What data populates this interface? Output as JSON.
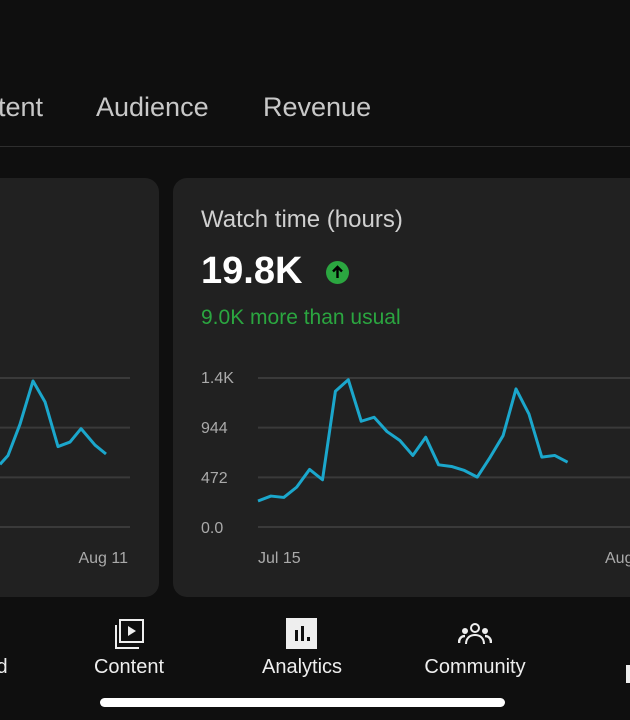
{
  "tabs": [
    {
      "label": "Content",
      "visible_text": "tent"
    },
    {
      "label": "Audience"
    },
    {
      "label": "Revenue"
    }
  ],
  "left_card": {
    "x_end_label": "Aug 11",
    "relative_values": [
      0.42,
      0.48,
      0.69,
      0.98,
      0.84,
      0.54,
      0.57,
      0.66,
      0.55,
      0.49
    ]
  },
  "watch_time_card": {
    "title": "Watch time (hours)",
    "value": "19.8K",
    "trend_icon": "arrow-up-circle-icon",
    "delta_text": "9.0K more than usual",
    "accent_color": "#2ba640",
    "line_color": "#1ba7cc"
  },
  "chart_data": {
    "type": "line",
    "title": "Watch time (hours)",
    "y_ticks": [
      "0.0",
      "472",
      "944",
      "1.4K"
    ],
    "ylim": [
      0,
      1416
    ],
    "x_tick_labels": [
      "Jul 15",
      "Aug"
    ],
    "grid": true,
    "x": [
      "Jul 15",
      "Jul 16",
      "Jul 17",
      "Jul 18",
      "Jul 19",
      "Jul 20",
      "Jul 21",
      "Jul 22",
      "Jul 23",
      "Jul 24",
      "Jul 25",
      "Jul 26",
      "Jul 27",
      "Jul 28",
      "Jul 29",
      "Jul 30",
      "Jul 31",
      "Aug 1",
      "Aug 2",
      "Aug 3",
      "Aug 4",
      "Aug 5",
      "Aug 6",
      "Aug 7",
      "Aug 8"
    ],
    "values": [
      247,
      294,
      281,
      379,
      547,
      449,
      1290,
      1400,
      1005,
      1043,
      907,
      822,
      680,
      853,
      591,
      575,
      537,
      474,
      664,
      869,
      1312,
      1075,
      664,
      680,
      616
    ]
  },
  "bottom_nav": [
    {
      "label": "d",
      "icon": "dashboard-icon"
    },
    {
      "label": "Content",
      "icon": "content-library-icon"
    },
    {
      "label": "Analytics",
      "icon": "analytics-icon",
      "active": true
    },
    {
      "label": "Community",
      "icon": "community-icon"
    },
    {
      "label": "",
      "icon": "earn-icon"
    }
  ]
}
